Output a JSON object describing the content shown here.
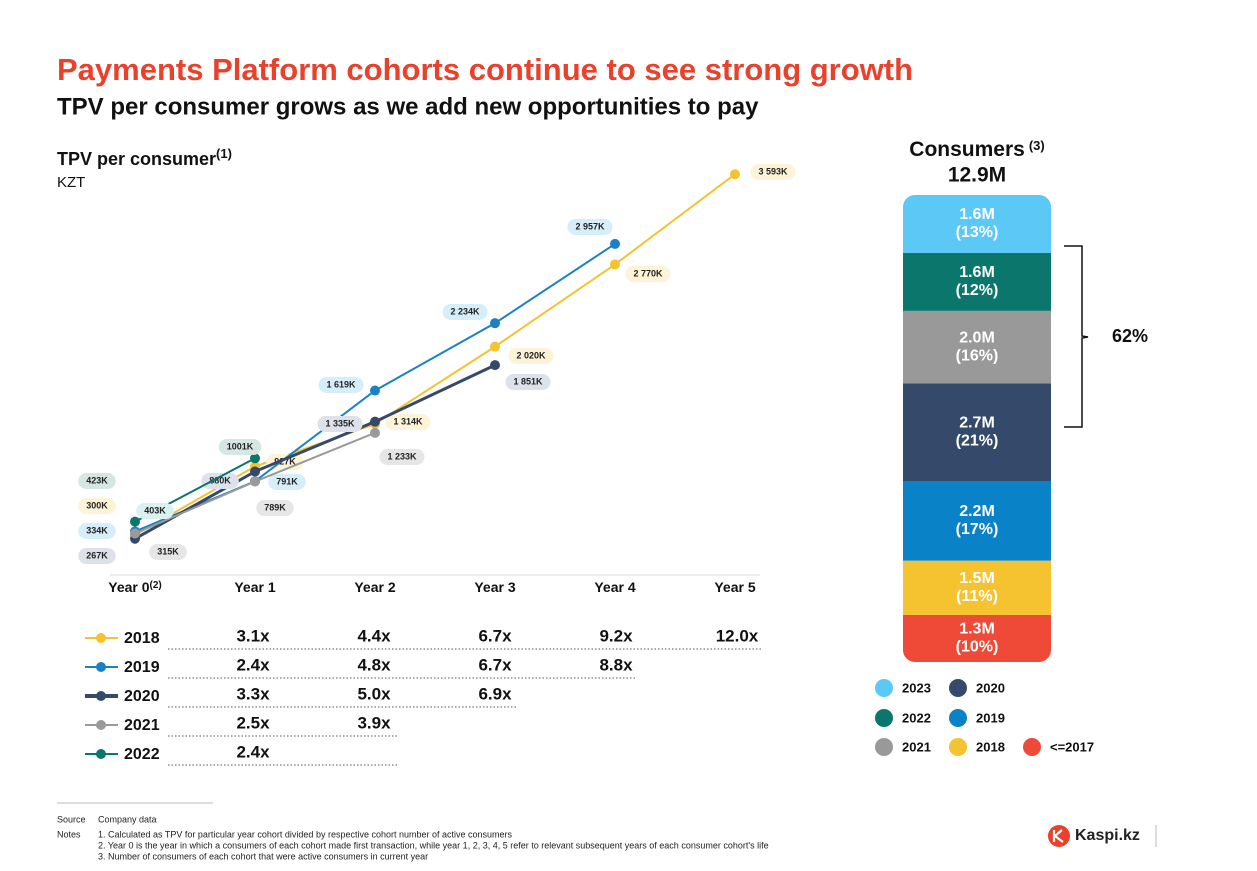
{
  "title": "Payments Platform cohorts continue to see strong growth",
  "subtitle": "TPV per consumer grows as we add new opportunities to pay",
  "chart_data": [
    {
      "type": "line",
      "title": "TPV per consumer",
      "title_note": "(1)",
      "unit": "KZT",
      "categories": [
        "Year 0",
        "Year 1",
        "Year 2",
        "Year 3",
        "Year 4",
        "Year 5"
      ],
      "first_category_note": "(2)",
      "series": [
        {
          "name": "2018",
          "color": "#f5c230",
          "values": [
            300,
            927,
            1314,
            2020,
            2770,
            3593
          ],
          "value_labels": [
            "300K",
            "927K",
            "1 314K",
            "2 020K",
            "2 770K",
            "3 593K"
          ]
        },
        {
          "name": "2019",
          "color": "#1a82c4",
          "values": [
            334,
            791,
            1619,
            2234,
            2957,
            null
          ],
          "value_labels": [
            "334K",
            "791K",
            "1 619K",
            "2 234K",
            "2 957K",
            null
          ]
        },
        {
          "name": "2020",
          "color": "#354a6b",
          "values": [
            267,
            880,
            1335,
            1851,
            null,
            null
          ],
          "value_labels": [
            "267K",
            "880K",
            "1 335K",
            "1 851K",
            null,
            null
          ]
        },
        {
          "name": "2021",
          "color": "#9a9a9a",
          "values": [
            315,
            789,
            1233,
            null,
            null,
            null
          ],
          "value_labels": [
            "315K",
            "789K",
            "1 233K",
            null,
            null,
            null
          ]
        },
        {
          "name": "2022",
          "color": "#0a766c",
          "values": [
            423,
            1001,
            null,
            null,
            null,
            null
          ],
          "value_labels": [
            "423K",
            "1001K",
            null,
            null,
            null,
            null
          ]
        }
      ],
      "annotations": [
        "403K"
      ]
    },
    {
      "type": "stacked_bar",
      "title": "Consumers",
      "title_note": "(3)",
      "total_label": "12.9M",
      "series": [
        {
          "name": "2023",
          "color": "#5bc8f5",
          "value": 1.6,
          "value_label": "1.6M",
          "share": 13,
          "share_label": "(13%)"
        },
        {
          "name": "2022",
          "color": "#0a766c",
          "value": 1.6,
          "value_label": "1.6M",
          "share": 12,
          "share_label": "(12%)"
        },
        {
          "name": "2021",
          "color": "#999999",
          "value": 2.0,
          "value_label": "2.0M",
          "share": 16,
          "share_label": "(16%)"
        },
        {
          "name": "2020",
          "color": "#354a6b",
          "value": 2.7,
          "value_label": "2.7M",
          "share": 21,
          "share_label": "(21%)"
        },
        {
          "name": "2019",
          "color": "#0a82c8",
          "value": 2.2,
          "value_label": "2.2M",
          "share": 17,
          "share_label": "(17%)"
        },
        {
          "name": "2018",
          "color": "#f5c230",
          "value": 1.5,
          "value_label": "1.5M",
          "share": 11,
          "share_label": "(11%)"
        },
        {
          "name": "<=2017",
          "color": "#ef4a37",
          "value": 1.3,
          "value_label": "1.3M",
          "share": 10,
          "share_label": "(10%)"
        }
      ],
      "bracket_label": "62%"
    }
  ],
  "multiples": [
    [
      "3.1x",
      "4.4x",
      "6.7x",
      "9.2x",
      "12.0x"
    ],
    [
      "2.4x",
      "4.8x",
      "6.7x",
      "8.8x"
    ],
    [
      "3.3x",
      "5.0x",
      "6.9x"
    ],
    [
      "2.5x",
      "3.9x"
    ],
    [
      "2.4x"
    ]
  ],
  "footer": {
    "source_label": "Source",
    "source": "Company data",
    "notes_label": "Notes",
    "notes": [
      "1.  Calculated as TPV for particular year cohort divided by respective cohort number of active consumers",
      "2.  Year 0 is the year in which a consumers of each cohort made first transaction, while year 1, 2, 3, 4, 5 refer to relevant subsequent years of each consumer cohort's life",
      "3.  Number of consumers of each cohort that were active consumers in current year"
    ]
  },
  "logo": "Kaspi.kz"
}
